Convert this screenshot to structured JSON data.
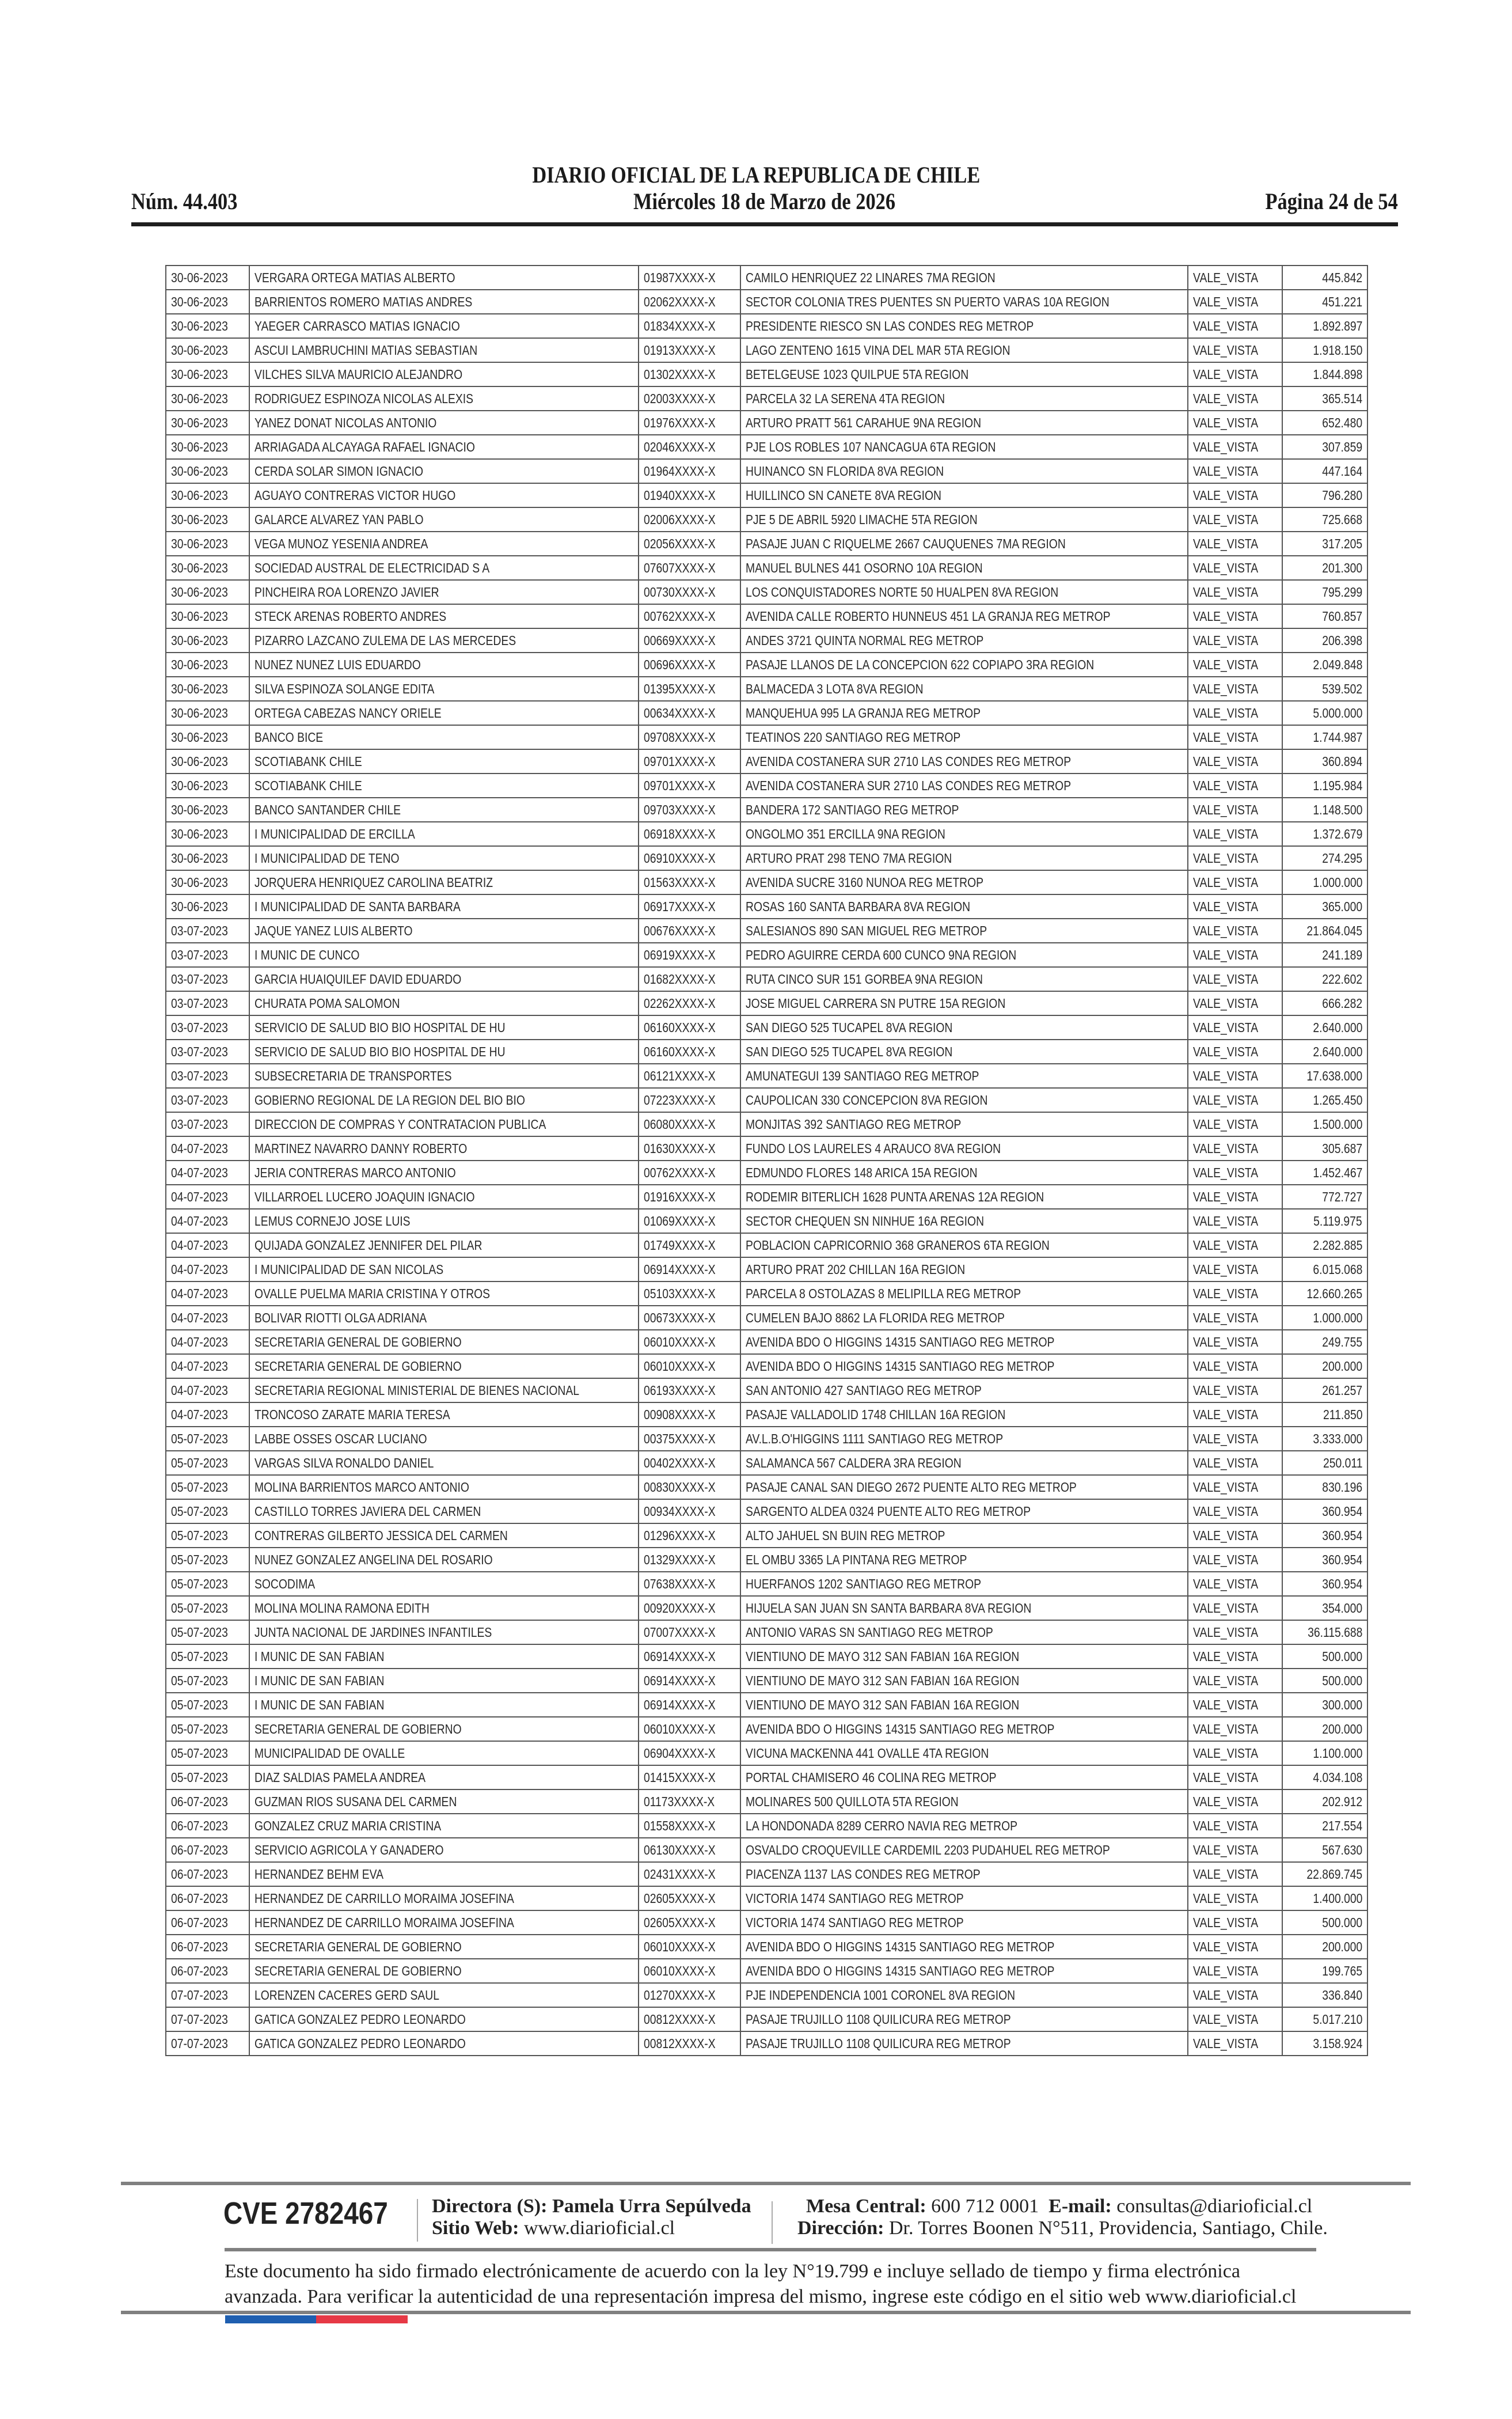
{
  "header": {
    "title": "DIARIO OFICIAL DE LA REPUBLICA DE CHILE",
    "number": "Núm. 44.403",
    "date": "Miércoles 18 de Marzo de 2026",
    "page": "Página 24 de 54"
  },
  "table": {
    "rows": [
      [
        "30-06-2023",
        "VERGARA ORTEGA MATIAS ALBERTO",
        "01987XXXX-X",
        "CAMILO HENRIQUEZ 22 LINARES 7MA REGION",
        "VALE_VISTA",
        "445.842"
      ],
      [
        "30-06-2023",
        "BARRIENTOS ROMERO MATIAS ANDRES",
        "02062XXXX-X",
        "SECTOR COLONIA TRES PUENTES SN PUERTO VARAS 10A REGION",
        "VALE_VISTA",
        "451.221"
      ],
      [
        "30-06-2023",
        "YAEGER CARRASCO MATIAS IGNACIO",
        "01834XXXX-X",
        "PRESIDENTE RIESCO SN LAS CONDES REG METROP",
        "VALE_VISTA",
        "1.892.897"
      ],
      [
        "30-06-2023",
        "ASCUI LAMBRUCHINI MATIAS SEBASTIAN",
        "01913XXXX-X",
        "LAGO ZENTENO 1615 VINA DEL MAR 5TA REGION",
        "VALE_VISTA",
        "1.918.150"
      ],
      [
        "30-06-2023",
        "VILCHES SILVA MAURICIO ALEJANDRO",
        "01302XXXX-X",
        "BETELGEUSE 1023 QUILPUE 5TA REGION",
        "VALE_VISTA",
        "1.844.898"
      ],
      [
        "30-06-2023",
        "RODRIGUEZ ESPINOZA NICOLAS ALEXIS",
        "02003XXXX-X",
        "PARCELA 32 LA SERENA 4TA REGION",
        "VALE_VISTA",
        "365.514"
      ],
      [
        "30-06-2023",
        "YANEZ DONAT NICOLAS ANTONIO",
        "01976XXXX-X",
        "ARTURO PRATT 561 CARAHUE 9NA REGION",
        "VALE_VISTA",
        "652.480"
      ],
      [
        "30-06-2023",
        "ARRIAGADA ALCAYAGA RAFAEL IGNACIO",
        "02046XXXX-X",
        "PJE LOS ROBLES 107 NANCAGUA 6TA REGION",
        "VALE_VISTA",
        "307.859"
      ],
      [
        "30-06-2023",
        "CERDA SOLAR SIMON IGNACIO",
        "01964XXXX-X",
        "HUINANCO SN FLORIDA 8VA REGION",
        "VALE_VISTA",
        "447.164"
      ],
      [
        "30-06-2023",
        "AGUAYO CONTRERAS VICTOR HUGO",
        "01940XXXX-X",
        "HUILLINCO SN CANETE 8VA REGION",
        "VALE_VISTA",
        "796.280"
      ],
      [
        "30-06-2023",
        "GALARCE ALVAREZ YAN PABLO",
        "02006XXXX-X",
        "PJE 5 DE ABRIL 5920 LIMACHE 5TA REGION",
        "VALE_VISTA",
        "725.668"
      ],
      [
        "30-06-2023",
        "VEGA MUNOZ YESENIA ANDREA",
        "02056XXXX-X",
        "PASAJE JUAN C RIQUELME 2667 CAUQUENES 7MA REGION",
        "VALE_VISTA",
        "317.205"
      ],
      [
        "30-06-2023",
        "SOCIEDAD AUSTRAL DE ELECTRICIDAD S A",
        "07607XXXX-X",
        "MANUEL BULNES 441 OSORNO 10A REGION",
        "VALE_VISTA",
        "201.300"
      ],
      [
        "30-06-2023",
        "PINCHEIRA ROA LORENZO JAVIER",
        "00730XXXX-X",
        "LOS CONQUISTADORES NORTE 50 HUALPEN 8VA REGION",
        "VALE_VISTA",
        "795.299"
      ],
      [
        "30-06-2023",
        "STECK ARENAS ROBERTO ANDRES",
        "00762XXXX-X",
        "AVENIDA CALLE ROBERTO HUNNEUS 451 LA GRANJA REG METROP",
        "VALE_VISTA",
        "760.857"
      ],
      [
        "30-06-2023",
        "PIZARRO LAZCANO ZULEMA DE LAS MERCEDES",
        "00669XXXX-X",
        "ANDES 3721 QUINTA NORMAL REG METROP",
        "VALE_VISTA",
        "206.398"
      ],
      [
        "30-06-2023",
        "NUNEZ NUNEZ LUIS EDUARDO",
        "00696XXXX-X",
        "PASAJE LLANOS DE LA CONCEPCION 622 COPIAPO 3RA REGION",
        "VALE_VISTA",
        "2.049.848"
      ],
      [
        "30-06-2023",
        "SILVA ESPINOZA SOLANGE EDITA",
        "01395XXXX-X",
        "BALMACEDA 3 LOTA 8VA REGION",
        "VALE_VISTA",
        "539.502"
      ],
      [
        "30-06-2023",
        "ORTEGA CABEZAS NANCY ORIELE",
        "00634XXXX-X",
        "MANQUEHUA 995 LA GRANJA REG METROP",
        "VALE_VISTA",
        "5.000.000"
      ],
      [
        "30-06-2023",
        "BANCO BICE",
        "09708XXXX-X",
        "TEATINOS 220 SANTIAGO REG METROP",
        "VALE_VISTA",
        "1.744.987"
      ],
      [
        "30-06-2023",
        "SCOTIABANK CHILE",
        "09701XXXX-X",
        "AVENIDA COSTANERA SUR 2710 LAS CONDES REG METROP",
        "VALE_VISTA",
        "360.894"
      ],
      [
        "30-06-2023",
        "SCOTIABANK CHILE",
        "09701XXXX-X",
        "AVENIDA COSTANERA SUR 2710 LAS CONDES REG METROP",
        "VALE_VISTA",
        "1.195.984"
      ],
      [
        "30-06-2023",
        "BANCO SANTANDER CHILE",
        "09703XXXX-X",
        "BANDERA 172 SANTIAGO REG METROP",
        "VALE_VISTA",
        "1.148.500"
      ],
      [
        "30-06-2023",
        "I MUNICIPALIDAD DE ERCILLA",
        "06918XXXX-X",
        "ONGOLMO 351 ERCILLA 9NA REGION",
        "VALE_VISTA",
        "1.372.679"
      ],
      [
        "30-06-2023",
        "I MUNICIPALIDAD DE TENO",
        "06910XXXX-X",
        "ARTURO PRAT 298 TENO 7MA REGION",
        "VALE_VISTA",
        "274.295"
      ],
      [
        "30-06-2023",
        "JORQUERA HENRIQUEZ CAROLINA BEATRIZ",
        "01563XXXX-X",
        "AVENIDA SUCRE 3160 NUNOA REG METROP",
        "VALE_VISTA",
        "1.000.000"
      ],
      [
        "30-06-2023",
        "I MUNICIPALIDAD DE SANTA BARBARA",
        "06917XXXX-X",
        "ROSAS 160 SANTA BARBARA 8VA REGION",
        "VALE_VISTA",
        "365.000"
      ],
      [
        "03-07-2023",
        "JAQUE YANEZ LUIS ALBERTO",
        "00676XXXX-X",
        "SALESIANOS 890 SAN MIGUEL REG METROP",
        "VALE_VISTA",
        "21.864.045"
      ],
      [
        "03-07-2023",
        "I MUNIC DE CUNCO",
        "06919XXXX-X",
        "PEDRO AGUIRRE CERDA 600 CUNCO 9NA REGION",
        "VALE_VISTA",
        "241.189"
      ],
      [
        "03-07-2023",
        "GARCIA HUAIQUILEF DAVID EDUARDO",
        "01682XXXX-X",
        "RUTA CINCO SUR 151 GORBEA 9NA REGION",
        "VALE_VISTA",
        "222.602"
      ],
      [
        "03-07-2023",
        "CHURATA POMA SALOMON",
        "02262XXXX-X",
        "JOSE MIGUEL CARRERA SN PUTRE 15A REGION",
        "VALE_VISTA",
        "666.282"
      ],
      [
        "03-07-2023",
        "SERVICIO DE SALUD BIO BIO HOSPITAL DE HU",
        "06160XXXX-X",
        "SAN DIEGO 525 TUCAPEL 8VA REGION",
        "VALE_VISTA",
        "2.640.000"
      ],
      [
        "03-07-2023",
        "SERVICIO DE SALUD BIO BIO HOSPITAL DE HU",
        "06160XXXX-X",
        "SAN DIEGO 525 TUCAPEL 8VA REGION",
        "VALE_VISTA",
        "2.640.000"
      ],
      [
        "03-07-2023",
        "SUBSECRETARIA DE TRANSPORTES",
        "06121XXXX-X",
        "AMUNATEGUI 139 SANTIAGO REG METROP",
        "VALE_VISTA",
        "17.638.000"
      ],
      [
        "03-07-2023",
        "GOBIERNO REGIONAL DE LA REGION DEL BIO BIO",
        "07223XXXX-X",
        "CAUPOLICAN 330 CONCEPCION 8VA REGION",
        "VALE_VISTA",
        "1.265.450"
      ],
      [
        "03-07-2023",
        "DIRECCION DE COMPRAS Y CONTRATACION PUBLICA",
        "06080XXXX-X",
        "MONJITAS 392 SANTIAGO REG METROP",
        "VALE_VISTA",
        "1.500.000"
      ],
      [
        "04-07-2023",
        "MARTINEZ NAVARRO DANNY ROBERTO",
        "01630XXXX-X",
        "FUNDO LOS LAURELES 4 ARAUCO 8VA REGION",
        "VALE_VISTA",
        "305.687"
      ],
      [
        "04-07-2023",
        "JERIA CONTRERAS MARCO ANTONIO",
        "00762XXXX-X",
        "EDMUNDO FLORES 148 ARICA 15A REGION",
        "VALE_VISTA",
        "1.452.467"
      ],
      [
        "04-07-2023",
        "VILLARROEL LUCERO JOAQUIN IGNACIO",
        "01916XXXX-X",
        "RODEMIR BITERLICH 1628 PUNTA ARENAS 12A REGION",
        "VALE_VISTA",
        "772.727"
      ],
      [
        "04-07-2023",
        "LEMUS CORNEJO JOSE LUIS",
        "01069XXXX-X",
        "SECTOR CHEQUEN SN NINHUE 16A REGION",
        "VALE_VISTA",
        "5.119.975"
      ],
      [
        "04-07-2023",
        "QUIJADA GONZALEZ JENNIFER DEL PILAR",
        "01749XXXX-X",
        "POBLACION CAPRICORNIO 368 GRANEROS 6TA REGION",
        "VALE_VISTA",
        "2.282.885"
      ],
      [
        "04-07-2023",
        "I MUNICIPALIDAD DE SAN NICOLAS",
        "06914XXXX-X",
        "ARTURO PRAT 202 CHILLAN 16A REGION",
        "VALE_VISTA",
        "6.015.068"
      ],
      [
        "04-07-2023",
        "OVALLE PUELMA MARIA CRISTINA Y OTROS",
        "05103XXXX-X",
        "PARCELA 8 OSTOLAZAS 8 MELIPILLA REG METROP",
        "VALE_VISTA",
        "12.660.265"
      ],
      [
        "04-07-2023",
        "BOLIVAR RIOTTI OLGA ADRIANA",
        "00673XXXX-X",
        "CUMELEN BAJO 8862 LA FLORIDA REG METROP",
        "VALE_VISTA",
        "1.000.000"
      ],
      [
        "04-07-2023",
        "SECRETARIA GENERAL DE GOBIERNO",
        "06010XXXX-X",
        "AVENIDA BDO O HIGGINS 14315 SANTIAGO REG METROP",
        "VALE_VISTA",
        "249.755"
      ],
      [
        "04-07-2023",
        "SECRETARIA GENERAL DE GOBIERNO",
        "06010XXXX-X",
        "AVENIDA BDO O HIGGINS 14315 SANTIAGO REG METROP",
        "VALE_VISTA",
        "200.000"
      ],
      [
        "04-07-2023",
        "SECRETARIA REGIONAL MINISTERIAL DE BIENES NACIONAL",
        "06193XXXX-X",
        "SAN ANTONIO 427 SANTIAGO REG METROP",
        "VALE_VISTA",
        "261.257"
      ],
      [
        "04-07-2023",
        "TRONCOSO ZARATE MARIA TERESA",
        "00908XXXX-X",
        "PASAJE VALLADOLID 1748 CHILLAN 16A REGION",
        "VALE_VISTA",
        "211.850"
      ],
      [
        "05-07-2023",
        "LABBE OSSES OSCAR LUCIANO",
        "00375XXXX-X",
        "AV.L.B.O'HIGGINS 1111 SANTIAGO REG METROP",
        "VALE_VISTA",
        "3.333.000"
      ],
      [
        "05-07-2023",
        "VARGAS SILVA RONALDO DANIEL",
        "00402XXXX-X",
        "SALAMANCA 567 CALDERA 3RA REGION",
        "VALE_VISTA",
        "250.011"
      ],
      [
        "05-07-2023",
        "MOLINA BARRIENTOS MARCO ANTONIO",
        "00830XXXX-X",
        "PASAJE CANAL SAN DIEGO 2672 PUENTE ALTO REG METROP",
        "VALE_VISTA",
        "830.196"
      ],
      [
        "05-07-2023",
        "CASTILLO TORRES JAVIERA DEL CARMEN",
        "00934XXXX-X",
        "SARGENTO ALDEA 0324 PUENTE ALTO REG METROP",
        "VALE_VISTA",
        "360.954"
      ],
      [
        "05-07-2023",
        "CONTRERAS GILBERTO JESSICA DEL CARMEN",
        "01296XXXX-X",
        "ALTO JAHUEL SN BUIN REG METROP",
        "VALE_VISTA",
        "360.954"
      ],
      [
        "05-07-2023",
        "NUNEZ GONZALEZ ANGELINA DEL ROSARIO",
        "01329XXXX-X",
        "EL OMBU 3365 LA PINTANA REG METROP",
        "VALE_VISTA",
        "360.954"
      ],
      [
        "05-07-2023",
        "SOCODIMA",
        "07638XXXX-X",
        "HUERFANOS 1202 SANTIAGO REG METROP",
        "VALE_VISTA",
        "360.954"
      ],
      [
        "05-07-2023",
        "MOLINA MOLINA RAMONA EDITH",
        "00920XXXX-X",
        "HIJUELA SAN JUAN SN SANTA BARBARA 8VA REGION",
        "VALE_VISTA",
        "354.000"
      ],
      [
        "05-07-2023",
        "JUNTA NACIONAL DE JARDINES INFANTILES",
        "07007XXXX-X",
        "ANTONIO VARAS SN SANTIAGO REG METROP",
        "VALE_VISTA",
        "36.115.688"
      ],
      [
        "05-07-2023",
        "I MUNIC DE SAN FABIAN",
        "06914XXXX-X",
        "VIENTIUNO DE MAYO 312 SAN FABIAN 16A REGION",
        "VALE_VISTA",
        "500.000"
      ],
      [
        "05-07-2023",
        "I MUNIC DE SAN FABIAN",
        "06914XXXX-X",
        "VIENTIUNO DE MAYO 312 SAN FABIAN 16A REGION",
        "VALE_VISTA",
        "500.000"
      ],
      [
        "05-07-2023",
        "I MUNIC DE SAN FABIAN",
        "06914XXXX-X",
        "VIENTIUNO DE MAYO 312 SAN FABIAN 16A REGION",
        "VALE_VISTA",
        "300.000"
      ],
      [
        "05-07-2023",
        "SECRETARIA GENERAL DE GOBIERNO",
        "06010XXXX-X",
        "AVENIDA BDO O HIGGINS 14315 SANTIAGO REG METROP",
        "VALE_VISTA",
        "200.000"
      ],
      [
        "05-07-2023",
        "MUNICIPALIDAD DE OVALLE",
        "06904XXXX-X",
        "VICUNA MACKENNA 441 OVALLE 4TA REGION",
        "VALE_VISTA",
        "1.100.000"
      ],
      [
        "05-07-2023",
        "DIAZ SALDIAS PAMELA ANDREA",
        "01415XXXX-X",
        "PORTAL CHAMISERO 46 COLINA REG METROP",
        "VALE_VISTA",
        "4.034.108"
      ],
      [
        "06-07-2023",
        "GUZMAN RIOS SUSANA DEL CARMEN",
        "01173XXXX-X",
        "MOLINARES 500 QUILLOTA 5TA REGION",
        "VALE_VISTA",
        "202.912"
      ],
      [
        "06-07-2023",
        "GONZALEZ CRUZ MARIA CRISTINA",
        "01558XXXX-X",
        "LA HONDONADA 8289 CERRO NAVIA REG METROP",
        "VALE_VISTA",
        "217.554"
      ],
      [
        "06-07-2023",
        "SERVICIO AGRICOLA Y GANADERO",
        "06130XXXX-X",
        "OSVALDO CROQUEVILLE CARDEMIL 2203 PUDAHUEL REG METROP",
        "VALE_VISTA",
        "567.630"
      ],
      [
        "06-07-2023",
        "HERNANDEZ BEHM EVA",
        "02431XXXX-X",
        "PIACENZA 1137 LAS CONDES REG METROP",
        "VALE_VISTA",
        "22.869.745"
      ],
      [
        "06-07-2023",
        "HERNANDEZ DE CARRILLO MORAIMA JOSEFINA",
        "02605XXXX-X",
        "VICTORIA 1474 SANTIAGO REG METROP",
        "VALE_VISTA",
        "1.400.000"
      ],
      [
        "06-07-2023",
        "HERNANDEZ DE CARRILLO MORAIMA JOSEFINA",
        "02605XXXX-X",
        "VICTORIA 1474 SANTIAGO REG METROP",
        "VALE_VISTA",
        "500.000"
      ],
      [
        "06-07-2023",
        "SECRETARIA GENERAL DE GOBIERNO",
        "06010XXXX-X",
        "AVENIDA BDO O HIGGINS 14315 SANTIAGO REG METROP",
        "VALE_VISTA",
        "200.000"
      ],
      [
        "06-07-2023",
        "SECRETARIA GENERAL DE GOBIERNO",
        "06010XXXX-X",
        "AVENIDA BDO O HIGGINS 14315 SANTIAGO REG METROP",
        "VALE_VISTA",
        "199.765"
      ],
      [
        "07-07-2023",
        "LORENZEN CACERES GERD SAUL",
        "01270XXXX-X",
        "PJE INDEPENDENCIA 1001 CORONEL 8VA REGION",
        "VALE_VISTA",
        "336.840"
      ],
      [
        "07-07-2023",
        "GATICA GONZALEZ PEDRO LEONARDO",
        "00812XXXX-X",
        "PASAJE TRUJILLO 1108 QUILICURA REG METROP",
        "VALE_VISTA",
        "5.017.210"
      ],
      [
        "07-07-2023",
        "GATICA GONZALEZ PEDRO LEONARDO",
        "00812XXXX-X",
        "PASAJE TRUJILLO 1108 QUILICURA REG METROP",
        "VALE_VISTA",
        "3.158.924"
      ]
    ]
  },
  "footer": {
    "cve": "CVE 2782467",
    "director_label": "Directora (S):",
    "director_name": "Pamela Urra Sepúlveda",
    "web_label": "Sitio Web:",
    "web_value": "www.diarioficial.cl",
    "phone_label": "Mesa Central:",
    "phone_value": "600 712 0001",
    "email_label": "E-mail:",
    "email_value": "consultas@diarioficial.cl",
    "address_label": "Dirección:",
    "address_value": "Dr. Torres Boonen N°511, Providencia, Santiago, Chile.",
    "legal_line1": "Este documento ha sido firmado electrónicamente de acuerdo con la ley N°19.799 e incluye sellado de tiempo y firma electrónica",
    "legal_line2": "avanzada. Para verificar la autenticidad de una representación impresa del mismo, ingrese este código en el sitio web www.diarioficial.cl",
    "flag_colors": [
      "#1f5fb0",
      "#e63946"
    ]
  }
}
